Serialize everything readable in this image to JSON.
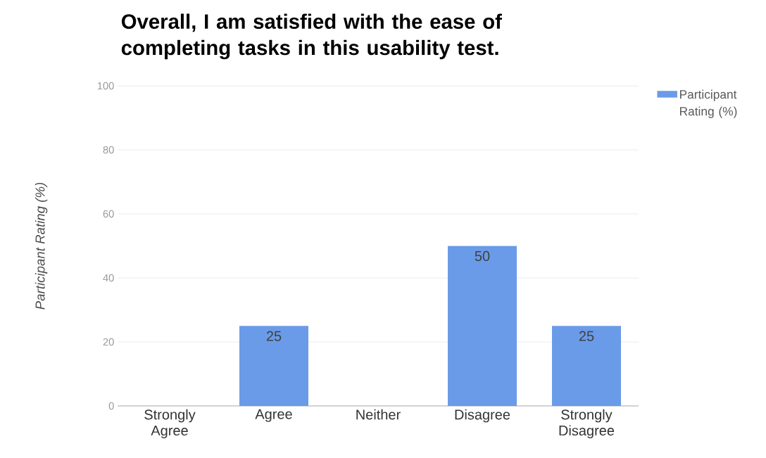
{
  "chart_data": {
    "type": "bar",
    "title": "Overall, I am satisfied with the ease of completing tasks in this usability test.",
    "ylabel": "Participant Rating (%)",
    "categories": [
      "Strongly Agree",
      "Agree",
      "Neither",
      "Disagree",
      "Strongly Disagree"
    ],
    "series": [
      {
        "name": "Participant Rating (%)",
        "color": "#6a9be8",
        "values": [
          0,
          25,
          0,
          50,
          25
        ],
        "value_labels": [
          null,
          "25",
          null,
          "50",
          "25"
        ]
      }
    ],
    "ylim": [
      0,
      100
    ],
    "yticks": [
      0,
      20,
      40,
      60,
      80,
      100
    ],
    "grid": "y",
    "legend": "top right"
  }
}
